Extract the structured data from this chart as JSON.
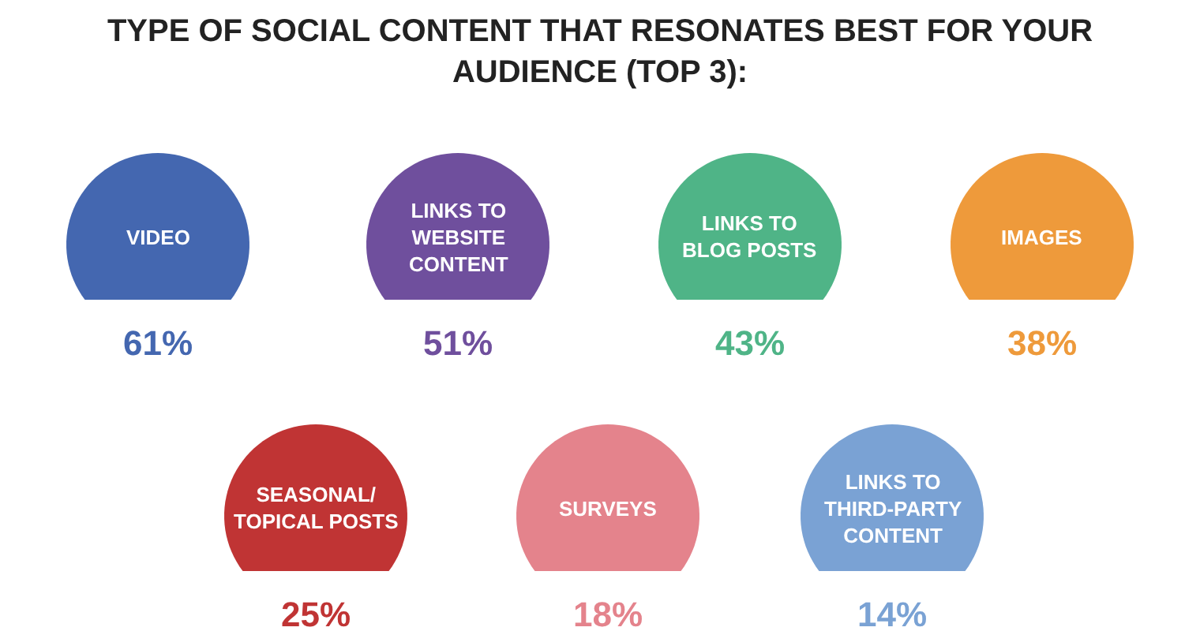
{
  "chart_data": {
    "type": "other",
    "title": "TYPE OF SOCIAL CONTENT THAT RESONATES BEST FOR YOUR\nAUDIENCE (TOP 3):",
    "categories": [
      "VIDEO",
      "LINKS TO\nWEBSITE\nCONTENT",
      "LINKS TO\nBLOG POSTS",
      "IMAGES",
      "SEASONAL/\nTOPICAL POSTS",
      "SURVEYS",
      "LINKS TO\nTHIRD-PARTY\nCONTENT"
    ],
    "values": [
      61,
      51,
      43,
      38,
      25,
      18,
      14
    ],
    "value_labels": [
      "61%",
      "51%",
      "43%",
      "38%",
      "25%",
      "18%",
      "14%"
    ],
    "colors": [
      "#4467b0",
      "#6f4f9d",
      "#4fb487",
      "#ee9a3b",
      "#c03434",
      "#e4838c",
      "#7aa2d4"
    ]
  }
}
